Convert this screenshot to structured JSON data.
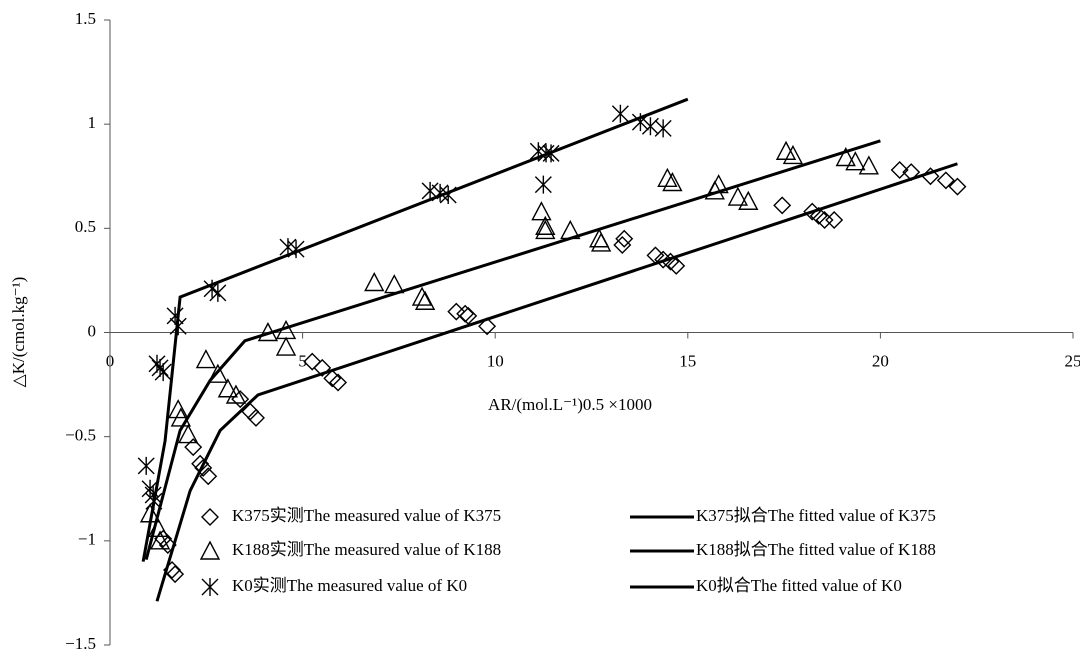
{
  "chart_data": {
    "type": "scatter",
    "x_label": "AR/(mol.L⁻¹)0.5 ×1000",
    "y_label": "△K/(cmol.kg⁻¹)",
    "xlim": [
      0,
      25
    ],
    "xticks": [
      0,
      5,
      10,
      15,
      20,
      25
    ],
    "ylim": [
      -1.5,
      1.5
    ],
    "yticks": [
      {
        "value": -1.5,
        "label": "−1.5"
      },
      {
        "value": -1,
        "label": "−1"
      },
      {
        "value": -0.5,
        "label": "−0.5"
      },
      0,
      0.5,
      1,
      1.5
    ],
    "series": [
      {
        "name": "K375实测The measured value of K375",
        "mode": "markers",
        "marker": "diamond",
        "color": "#000000",
        "x": [
          1.69,
          1.61,
          1.5,
          1.38,
          2.16,
          2.34,
          2.42,
          2.55,
          3.38,
          3.64,
          3.79,
          5.25,
          5.51,
          5.77,
          5.92,
          8.99,
          9.22,
          9.3,
          9.79,
          13.35,
          13.3,
          14.16,
          14.36,
          14.55,
          14.7,
          17.45,
          18.23,
          18.4,
          18.55,
          18.8,
          20.5,
          20.8,
          21.3,
          21.7,
          22.0
        ],
        "values": [
          -1.16,
          -1.14,
          -1.02,
          -0.99,
          -0.55,
          -0.63,
          -0.65,
          -0.69,
          -0.32,
          -0.38,
          -0.41,
          -0.14,
          -0.17,
          -0.22,
          -0.24,
          0.1,
          0.09,
          0.08,
          0.03,
          0.45,
          0.42,
          0.37,
          0.35,
          0.34,
          0.32,
          0.61,
          0.58,
          0.56,
          0.54,
          0.54,
          0.78,
          0.77,
          0.75,
          0.73,
          0.7
        ]
      },
      {
        "name": "K188实测The measured value of K188",
        "mode": "markers",
        "marker": "triangle",
        "color": "#000000",
        "x": [
          1.04,
          1.25,
          1.3,
          1.77,
          1.84,
          2.03,
          2.49,
          2.8,
          3.06,
          3.27,
          4.1,
          4.57,
          4.57,
          6.86,
          7.38,
          8.1,
          8.18,
          11.2,
          11.3,
          11.3,
          11.95,
          12.7,
          12.75,
          14.47,
          14.6,
          15.7,
          15.8,
          16.3,
          16.57,
          17.55,
          17.73,
          19.1,
          19.35,
          19.7
        ],
        "values": [
          -0.87,
          -0.94,
          -1.0,
          -0.37,
          -0.41,
          -0.49,
          -0.13,
          -0.2,
          -0.27,
          -0.3,
          0.0,
          0.01,
          -0.07,
          0.24,
          0.23,
          0.17,
          0.15,
          0.58,
          0.51,
          0.49,
          0.49,
          0.45,
          0.43,
          0.74,
          0.72,
          0.68,
          0.71,
          0.65,
          0.63,
          0.87,
          0.85,
          0.84,
          0.82,
          0.8
        ]
      },
      {
        "name": "K0实测The measured value of K0",
        "mode": "markers",
        "marker": "asterisk",
        "color": "#000000",
        "x": [
          0.94,
          1.04,
          1.12,
          1.14,
          1.22,
          1.3,
          1.38,
          1.69,
          1.77,
          2.65,
          2.8,
          4.62,
          4.83,
          8.31,
          8.57,
          8.78,
          11.12,
          11.32,
          11.45,
          13.25,
          13.77,
          14.03,
          14.36,
          11.25
        ],
        "values": [
          -0.64,
          -0.75,
          -0.78,
          -0.81,
          -0.15,
          -0.17,
          -0.19,
          0.08,
          0.03,
          0.21,
          0.19,
          0.41,
          0.4,
          0.68,
          0.67,
          0.66,
          0.87,
          0.86,
          0.86,
          1.05,
          1.01,
          0.99,
          0.98,
          0.71
        ]
      },
      {
        "name": "K375拟合The fitted value of K375",
        "mode": "line",
        "color": "#000000",
        "x": [
          1.22,
          2.08,
          2.86,
          3.84,
          22.0
        ],
        "values": [
          -1.29,
          -0.76,
          -0.47,
          -0.3,
          0.81
        ]
      },
      {
        "name": "K188拟合The fitted value of K188",
        "mode": "line",
        "color": "#000000",
        "x": [
          0.94,
          1.82,
          2.6,
          3.5,
          20.0
        ],
        "values": [
          -1.09,
          -0.47,
          -0.23,
          -0.04,
          0.92
        ]
      },
      {
        "name": "K0拟合The fitted value of K0",
        "mode": "line",
        "color": "#000000",
        "x": [
          0.86,
          1.43,
          1.82,
          15.0
        ],
        "values": [
          -1.1,
          -0.52,
          0.17,
          1.12
        ]
      }
    ]
  }
}
